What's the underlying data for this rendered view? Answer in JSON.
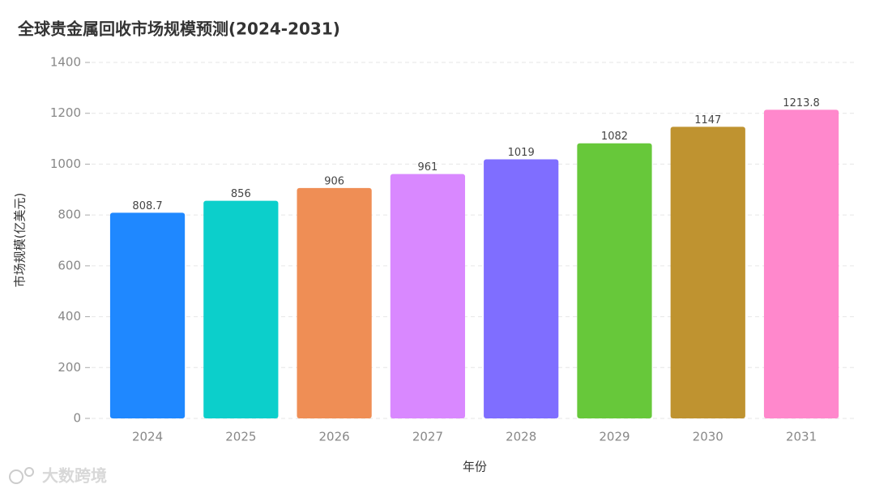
{
  "chart_data": {
    "type": "bar",
    "title": "全球贵金属回收市场规模预测(2024-2031)",
    "x_label": "年份",
    "y_label": "市场规模(亿美元)",
    "categories": [
      "2024",
      "2025",
      "2026",
      "2027",
      "2028",
      "2029",
      "2030",
      "2031"
    ],
    "values": [
      808.7,
      856,
      906,
      961,
      1019,
      1082,
      1147,
      1213.8
    ],
    "colors": [
      "#1f88ff",
      "#0ccfcb",
      "#ef8e55",
      "#d988ff",
      "#7f6eff",
      "#67c83a",
      "#bf9330",
      "#ff88cc"
    ],
    "ylim": [
      0,
      1400
    ],
    "yticks": [
      0,
      200,
      400,
      600,
      800,
      1000,
      1200,
      1400
    ],
    "grid": true,
    "watermark": "大数跨境"
  }
}
